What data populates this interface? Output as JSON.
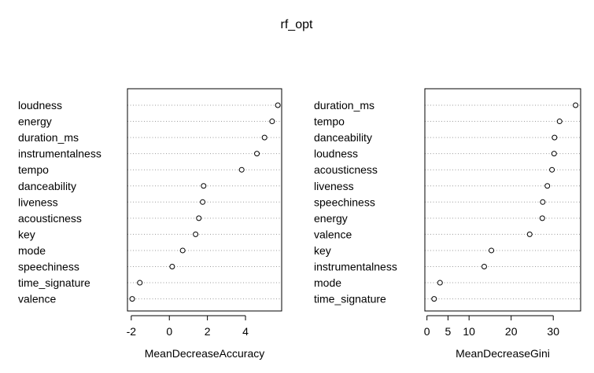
{
  "title": "rf_opt",
  "chart_data": [
    {
      "type": "scatter",
      "xlabel": "MeanDecreaseAccuracy",
      "xlim": [
        -2.2,
        5.9
      ],
      "xticks": [
        -2,
        0,
        2,
        4
      ],
      "grid": "dotted-horizontal",
      "categories": [
        "loudness",
        "energy",
        "duration_ms",
        "instrumentalness",
        "tempo",
        "danceability",
        "liveness",
        "acousticness",
        "key",
        "mode",
        "speechiness",
        "time_signature",
        "valence"
      ],
      "values": [
        5.7,
        5.4,
        5.0,
        4.6,
        3.8,
        1.8,
        1.75,
        1.55,
        1.38,
        0.7,
        0.15,
        -1.55,
        -1.95
      ]
    },
    {
      "type": "scatter",
      "xlabel": "MeanDecreaseGini",
      "xlim": [
        -0.5,
        36.5
      ],
      "xticks": [
        0,
        5,
        10,
        20,
        30
      ],
      "grid": "dotted-horizontal",
      "categories": [
        "duration_ms",
        "tempo",
        "danceability",
        "loudness",
        "acousticness",
        "liveness",
        "speechiness",
        "energy",
        "valence",
        "key",
        "instrumentalness",
        "mode",
        "time_signature"
      ],
      "values": [
        35.3,
        31.5,
        30.3,
        30.2,
        29.7,
        28.6,
        27.5,
        27.4,
        24.4,
        15.3,
        13.6,
        3.1,
        1.7
      ]
    }
  ]
}
